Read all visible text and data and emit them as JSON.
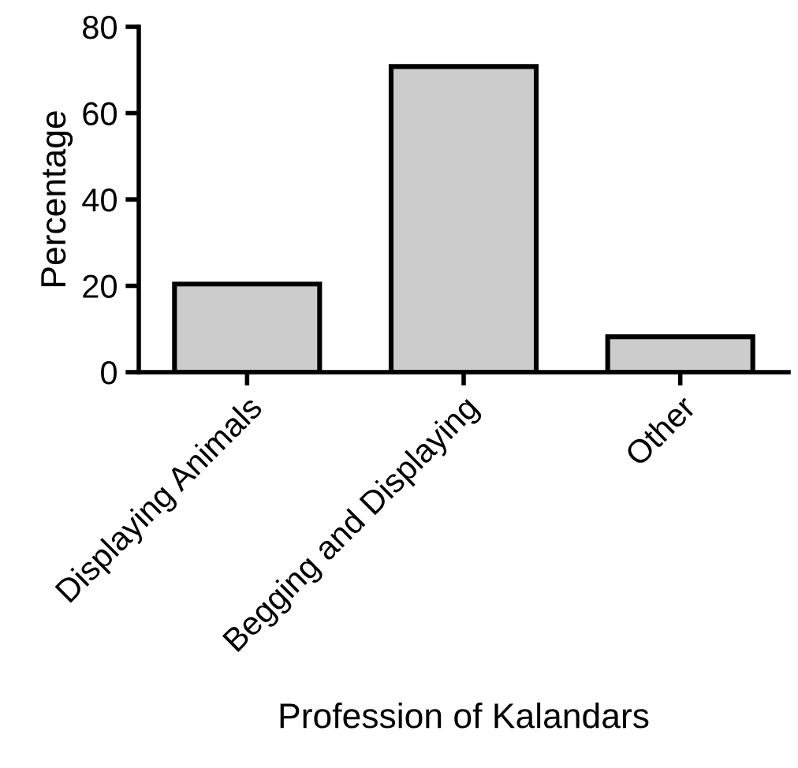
{
  "chart_data": {
    "type": "bar",
    "xlabel": "Profession of Kalandars",
    "ylabel": "Percentage",
    "categories": [
      "Displaying Animals",
      "Begging and Displaying",
      "Other"
    ],
    "values": [
      20.4,
      70.8,
      8.2
    ],
    "color": "#cccccc",
    "ylim": [
      0,
      80
    ],
    "yticks": [
      0,
      20,
      40,
      60,
      80
    ],
    "grid": false,
    "legend": false
  }
}
